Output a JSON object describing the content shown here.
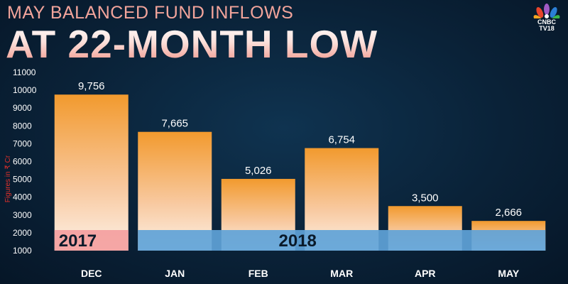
{
  "header": {
    "subtitle": "MAY BALANCED FUND INFLOWS",
    "title": "AT 22-MONTH LOW"
  },
  "logo": {
    "icon": "peacock-icon",
    "line1": "CNBC",
    "line2": "TV18"
  },
  "colors": {
    "bar_top": "#f29a2e",
    "bar_bottom": "#fdf1e6",
    "band_2018": "#5fa3d8",
    "band_2017": "#f4a0a0",
    "ylabel": "#e0302a"
  },
  "chart_data": {
    "type": "bar",
    "title": "MAY BALANCED FUND INFLOWS AT 22-MONTH LOW",
    "categories": [
      "DEC",
      "JAN",
      "FEB",
      "MAR",
      "APR",
      "MAY"
    ],
    "values": [
      9756,
      7665,
      5026,
      6754,
      3500,
      2666
    ],
    "value_labels": [
      "9,756",
      "7,665",
      "5,026",
      "6,754",
      "3,500",
      "2,666"
    ],
    "ylabel": "Figures in ₹ Cr",
    "ylim": [
      1000,
      11000
    ],
    "yticks": [
      1000,
      2000,
      3000,
      4000,
      5000,
      6000,
      7000,
      8000,
      9000,
      10000,
      11000
    ],
    "year_groups": [
      {
        "label": "2017",
        "categories": [
          "DEC"
        ]
      },
      {
        "label": "2018",
        "categories": [
          "JAN",
          "FEB",
          "MAR",
          "APR",
          "MAY"
        ]
      }
    ],
    "grid": false,
    "legend": "none"
  }
}
